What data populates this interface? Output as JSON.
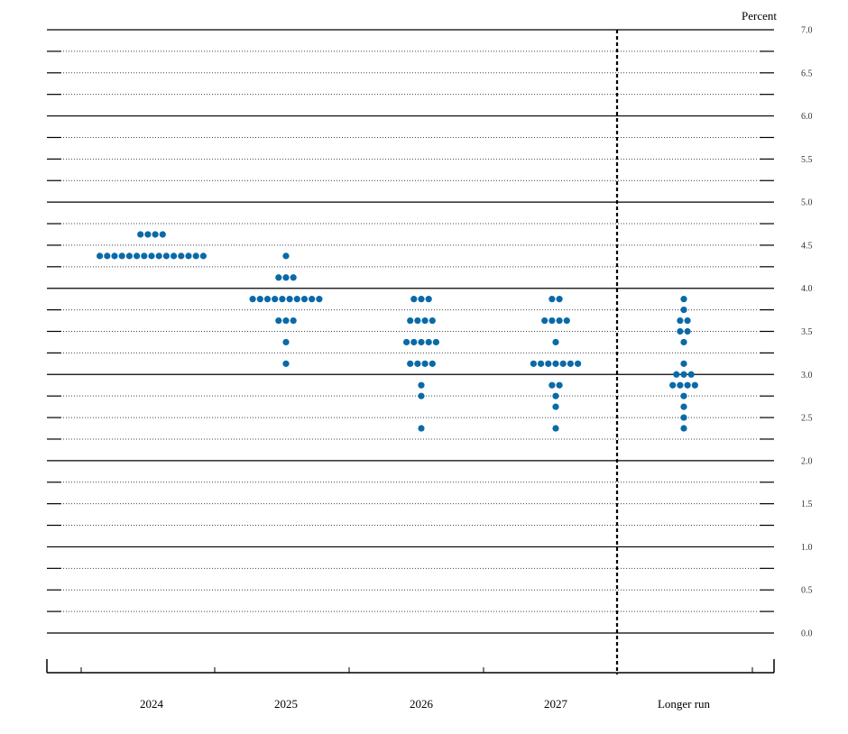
{
  "chart_data": {
    "type": "scatter",
    "subtype": "dot-plot",
    "unit_label": "Percent",
    "ylim": [
      0,
      7
    ],
    "yticks": [
      "0.0",
      "0.5",
      "1.0",
      "1.5",
      "2.0",
      "2.5",
      "3.0",
      "3.5",
      "4.0",
      "4.5",
      "5.0",
      "5.5",
      "6.0",
      "6.5",
      "7.0"
    ],
    "categories": [
      "2024",
      "2025",
      "2026",
      "2027",
      "Longer run"
    ],
    "grid": true,
    "divider_before": "Longer run",
    "dot_color": "#0a6aa8",
    "dots": [
      {
        "category": "2024",
        "levels": [
          {
            "value": 4.625,
            "count": 4
          },
          {
            "value": 4.375,
            "count": 15
          }
        ]
      },
      {
        "category": "2025",
        "levels": [
          {
            "value": 4.375,
            "count": 1
          },
          {
            "value": 4.125,
            "count": 3
          },
          {
            "value": 3.875,
            "count": 10
          },
          {
            "value": 3.625,
            "count": 3
          },
          {
            "value": 3.375,
            "count": 1
          },
          {
            "value": 3.125,
            "count": 1
          }
        ]
      },
      {
        "category": "2026",
        "levels": [
          {
            "value": 3.875,
            "count": 3
          },
          {
            "value": 3.625,
            "count": 4
          },
          {
            "value": 3.375,
            "count": 5
          },
          {
            "value": 3.125,
            "count": 4
          },
          {
            "value": 2.875,
            "count": 1
          },
          {
            "value": 2.75,
            "count": 1
          },
          {
            "value": 2.375,
            "count": 1
          }
        ]
      },
      {
        "category": "2027",
        "levels": [
          {
            "value": 3.875,
            "count": 2
          },
          {
            "value": 3.625,
            "count": 4
          },
          {
            "value": 3.375,
            "count": 1
          },
          {
            "value": 3.125,
            "count": 7
          },
          {
            "value": 2.875,
            "count": 2
          },
          {
            "value": 2.75,
            "count": 1
          },
          {
            "value": 2.625,
            "count": 1
          },
          {
            "value": 2.375,
            "count": 1
          }
        ]
      },
      {
        "category": "Longer run",
        "levels": [
          {
            "value": 3.875,
            "count": 1
          },
          {
            "value": 3.75,
            "count": 1
          },
          {
            "value": 3.625,
            "count": 2
          },
          {
            "value": 3.5,
            "count": 2
          },
          {
            "value": 3.375,
            "count": 1
          },
          {
            "value": 3.125,
            "count": 1
          },
          {
            "value": 3.0,
            "count": 3
          },
          {
            "value": 2.875,
            "count": 4
          },
          {
            "value": 2.75,
            "count": 1
          },
          {
            "value": 2.625,
            "count": 1
          },
          {
            "value": 2.5,
            "count": 1
          },
          {
            "value": 2.375,
            "count": 1
          }
        ]
      }
    ]
  }
}
